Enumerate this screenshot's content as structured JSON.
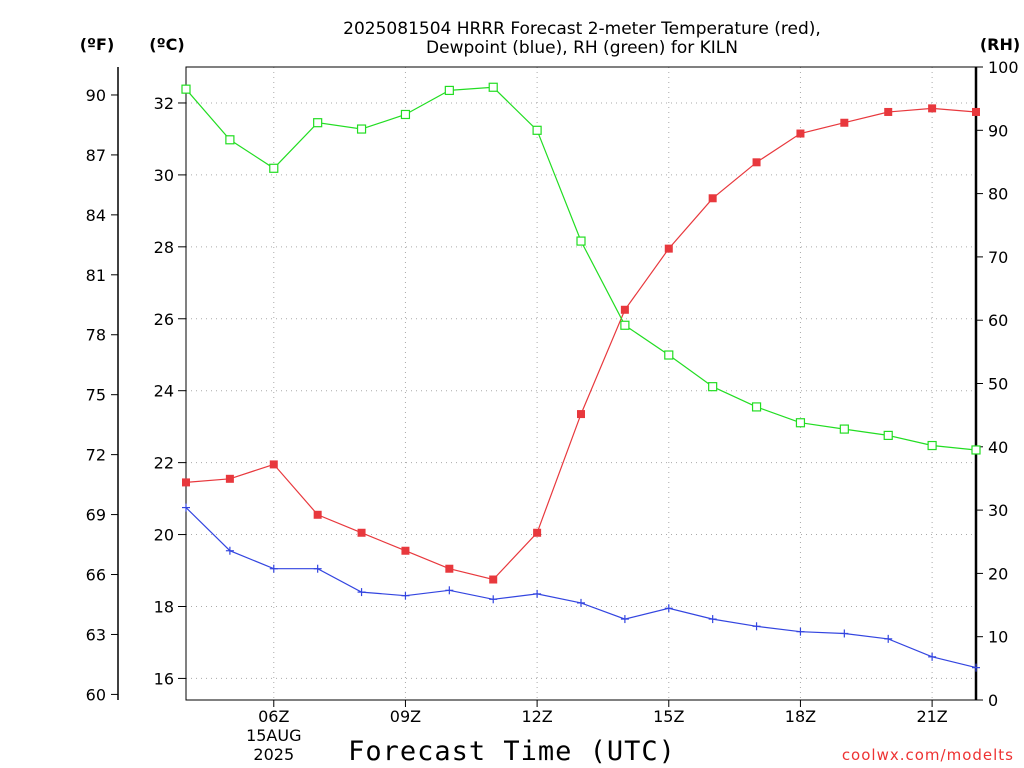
{
  "chart_data": {
    "type": "line",
    "title_line1": "2025081504 HRRR Forecast 2-meter Temperature (red),",
    "title_line2": "Dewpoint (blue), RH (green) for KILN",
    "xlabel": "Forecast Time (UTC)",
    "credit": "coolwx.com/modelts",
    "units": {
      "f": "(ºF)",
      "c": "(ºC)",
      "rh": "(RH)"
    },
    "x_hours": [
      4,
      5,
      6,
      7,
      8,
      9,
      10,
      11,
      12,
      13,
      14,
      15,
      16,
      17,
      18,
      19,
      20,
      21,
      22
    ],
    "xlim": [
      4,
      22
    ],
    "x_ticks": [
      {
        "hour": 6,
        "label": "06Z",
        "sub1": "15AUG",
        "sub2": "2025"
      },
      {
        "hour": 9,
        "label": "09Z"
      },
      {
        "hour": 12,
        "label": "12Z"
      },
      {
        "hour": 15,
        "label": "15Z"
      },
      {
        "hour": 18,
        "label": "18Z"
      },
      {
        "hour": 21,
        "label": "21Z"
      }
    ],
    "ylim_c": [
      15.4,
      33.0
    ],
    "y_ticks_c": [
      "16",
      "18",
      "20",
      "22",
      "24",
      "26",
      "28",
      "30",
      "32"
    ],
    "y_ticks_f": [
      "60",
      "63",
      "66",
      "69",
      "72",
      "75",
      "78",
      "81",
      "84",
      "87",
      "90"
    ],
    "ylim_rh": [
      0,
      100
    ],
    "y_ticks_rh": [
      "0",
      "10",
      "20",
      "30",
      "40",
      "50",
      "60",
      "70",
      "80",
      "90",
      "100"
    ],
    "grid": true,
    "colors": {
      "temperature": "#e8383d",
      "dewpoint": "#3345e0",
      "rh": "#22dd22"
    },
    "series": [
      {
        "name": "Temperature",
        "units": "C",
        "marker": "filled-square",
        "values": [
          21.45,
          21.55,
          21.95,
          20.55,
          20.05,
          19.55,
          19.05,
          18.75,
          20.05,
          23.35,
          26.25,
          27.95,
          29.35,
          30.35,
          31.15,
          31.45,
          31.75,
          31.85,
          31.75
        ]
      },
      {
        "name": "Dewpoint",
        "units": "C",
        "marker": "plus",
        "values": [
          20.75,
          19.55,
          19.05,
          19.05,
          18.4,
          18.3,
          18.45,
          18.2,
          18.35,
          18.1,
          17.65,
          17.95,
          17.65,
          17.45,
          17.3,
          17.25,
          17.1,
          16.6,
          16.3
        ]
      },
      {
        "name": "RH",
        "units": "%",
        "marker": "open-square",
        "values": [
          96.5,
          88.5,
          84.0,
          91.2,
          90.2,
          92.5,
          96.3,
          96.8,
          90.0,
          72.5,
          59.2,
          54.5,
          49.5,
          46.3,
          43.8,
          42.8,
          41.8,
          40.2,
          39.5
        ]
      }
    ]
  }
}
